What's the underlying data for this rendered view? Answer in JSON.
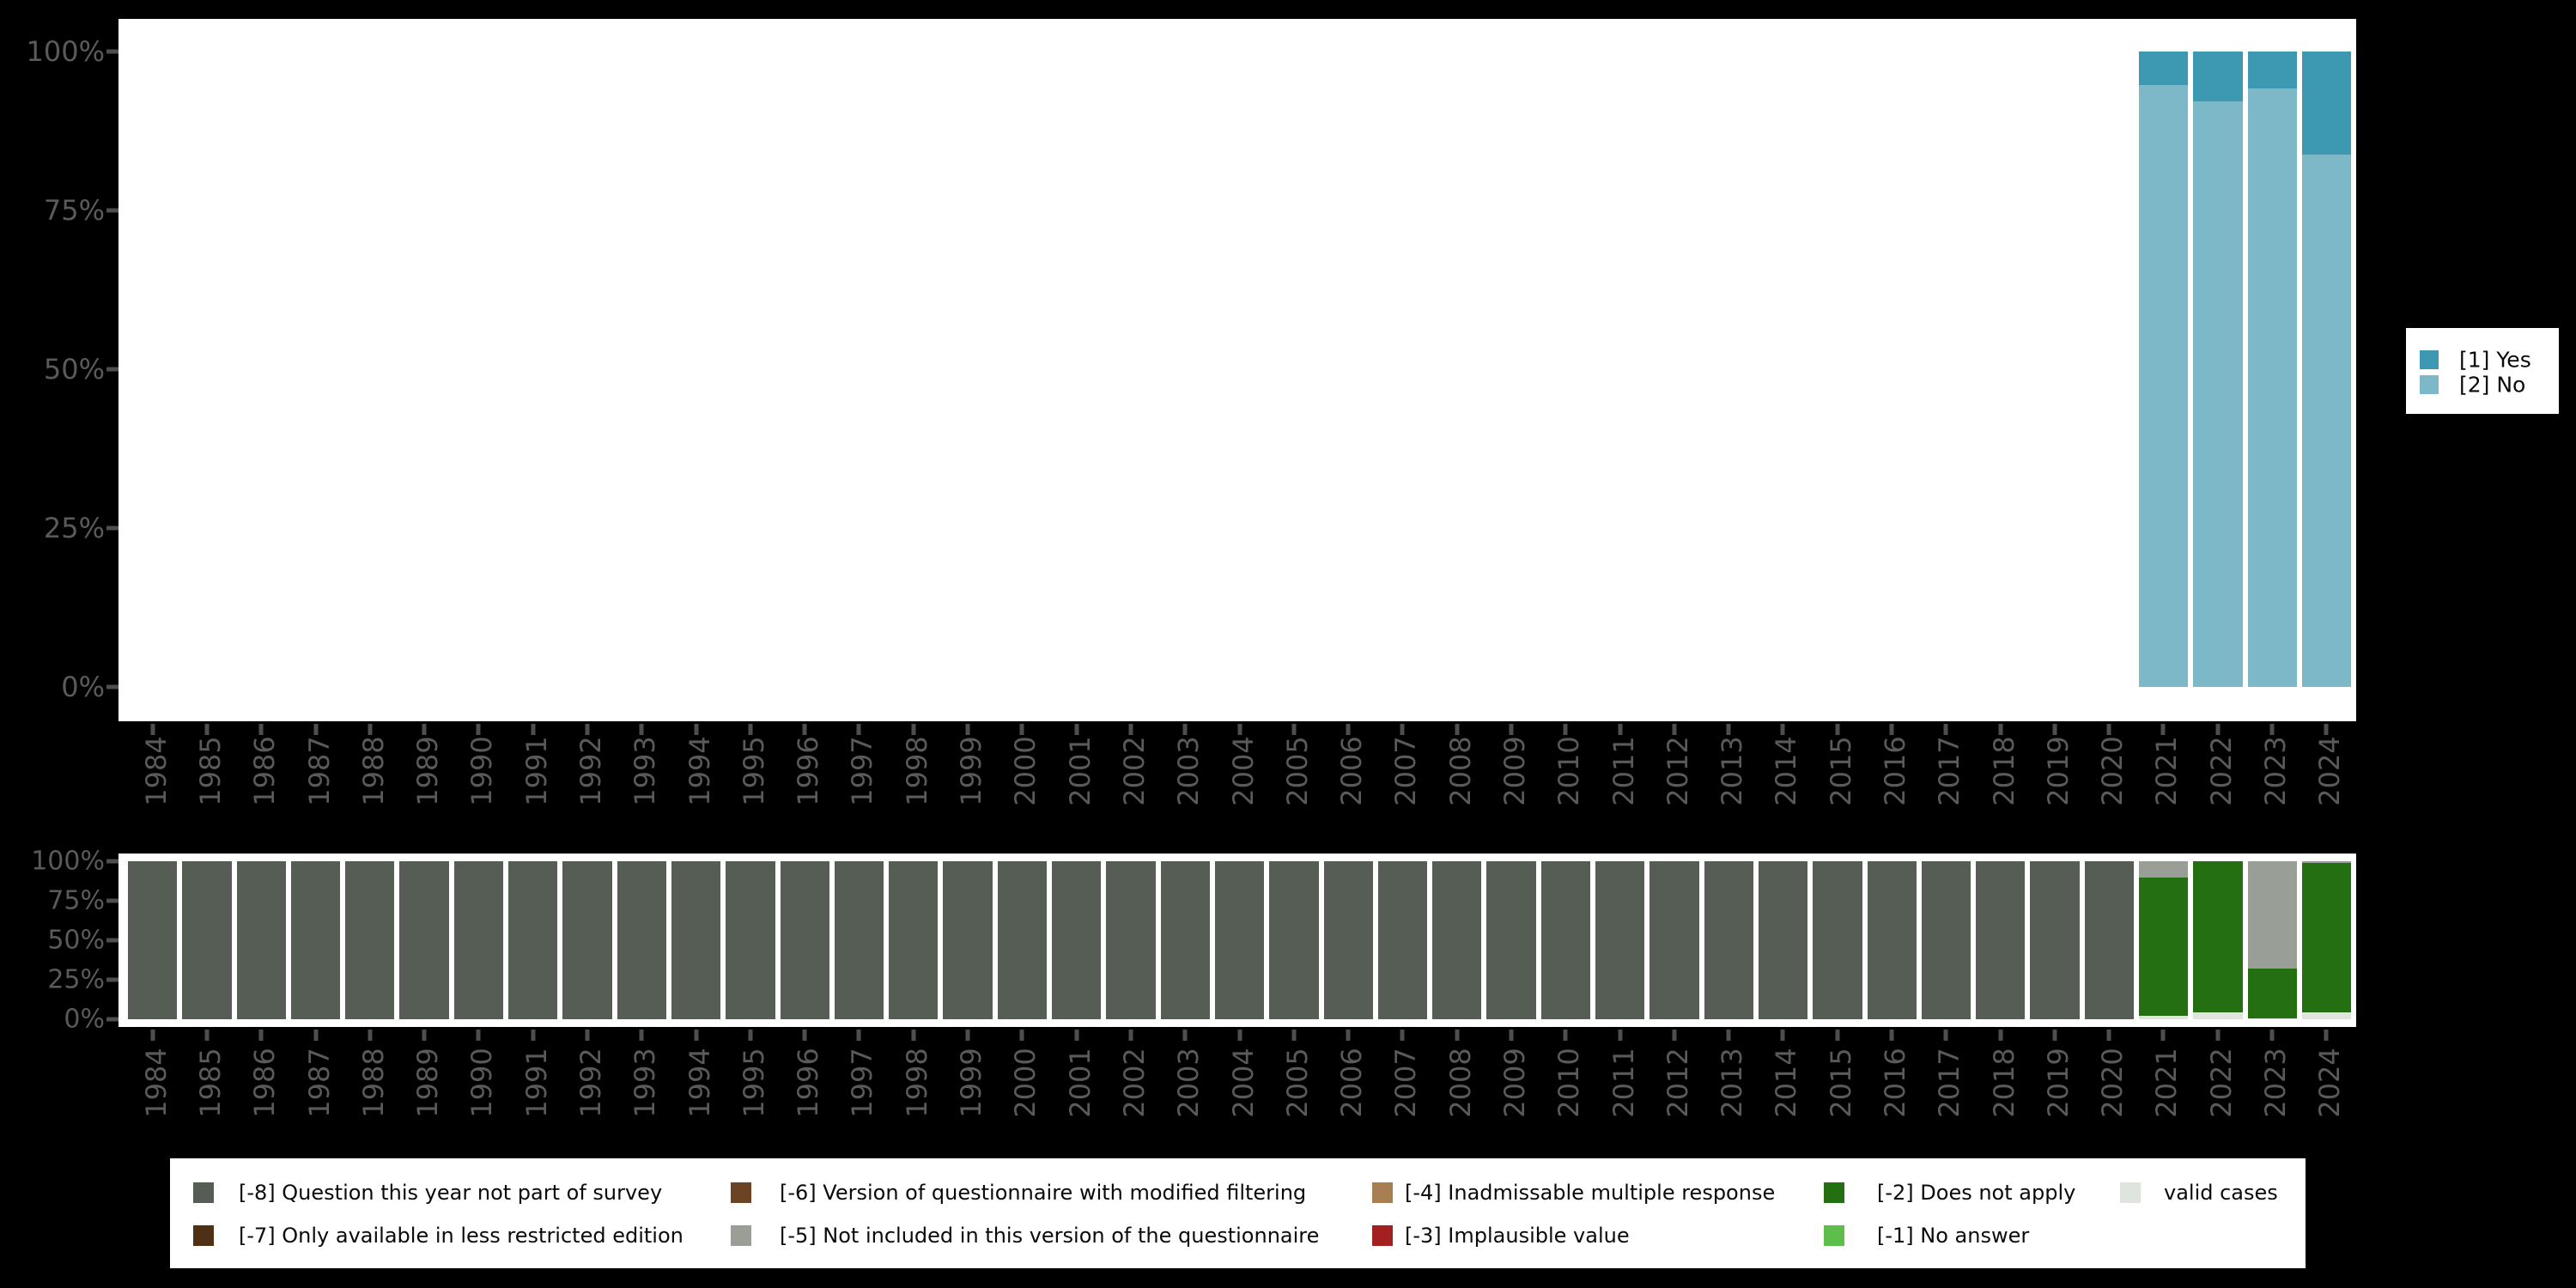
{
  "background": "#000000",
  "palette": {
    "yes": "#3d98b2",
    "no": "#7cb8c7",
    "m8": "#555d55",
    "m7": "#4e3115",
    "m6": "#6b4423",
    "m5": "#999f96",
    "m4": "#a87f52",
    "m3": "#a32020",
    "m2": "#256f13",
    "m1": "#5dbe4b",
    "valid": "#dfe4dc"
  },
  "axis": {
    "label_color": "#5a5a5a",
    "tick_color": "#4e4e4e"
  },
  "top_legend": [
    {
      "key": "yes",
      "label": "[1] Yes"
    },
    {
      "key": "no",
      "label": "[2] No"
    }
  ],
  "bottom_legend": {
    "items": [
      {
        "row": 1,
        "col": 1,
        "key": "m8",
        "label": "[-8] Question this year not part of survey"
      },
      {
        "row": 2,
        "col": 1,
        "key": "m7",
        "label": "[-7] Only available in less restricted edition"
      },
      {
        "row": 1,
        "col": 2,
        "key": "m6",
        "label": "[-6] Version of questionnaire with modified filtering"
      },
      {
        "row": 2,
        "col": 2,
        "key": "m5",
        "label": "[-5] Not included in this version of the questionnaire"
      },
      {
        "row": 1,
        "col": 3,
        "key": "m4",
        "label": "[-4] Inadmissable multiple response"
      },
      {
        "row": 2,
        "col": 3,
        "key": "m3",
        "label": "[-3] Implausible value"
      },
      {
        "row": 1,
        "col": 4,
        "key": "m2",
        "label": "[-2] Does not apply"
      },
      {
        "row": 2,
        "col": 4,
        "key": "m1",
        "label": "[-1] No answer"
      },
      {
        "row": 1,
        "col": 5,
        "key": "valid",
        "label": "valid cases"
      }
    ]
  },
  "chart_data": [
    {
      "type": "bar",
      "stacked": true,
      "title": "",
      "xlabel": "",
      "ylabel": "",
      "ylim": [
        0,
        100
      ],
      "y_ticks": [
        "100%",
        "75%",
        "50%",
        "25%",
        "0%"
      ],
      "grid": false,
      "legend_position": "right",
      "categories": [
        "1984",
        "1985",
        "1986",
        "1987",
        "1988",
        "1989",
        "1990",
        "1991",
        "1992",
        "1993",
        "1994",
        "1995",
        "1996",
        "1997",
        "1998",
        "1999",
        "2000",
        "2001",
        "2002",
        "2003",
        "2004",
        "2005",
        "2006",
        "2007",
        "2008",
        "2009",
        "2010",
        "2011",
        "2012",
        "2013",
        "2014",
        "2015",
        "2016",
        "2017",
        "2018",
        "2019",
        "2020",
        "2021",
        "2022",
        "2023",
        "2024"
      ],
      "series": [
        {
          "name": "[1] Yes",
          "key": "yes",
          "values": [
            null,
            null,
            null,
            null,
            null,
            null,
            null,
            null,
            null,
            null,
            null,
            null,
            null,
            null,
            null,
            null,
            null,
            null,
            null,
            null,
            null,
            null,
            null,
            null,
            null,
            null,
            null,
            null,
            null,
            null,
            null,
            null,
            null,
            null,
            null,
            null,
            null,
            5.3,
            7.9,
            5.8,
            16.2
          ]
        },
        {
          "name": "[2] No",
          "key": "no",
          "values": [
            null,
            null,
            null,
            null,
            null,
            null,
            null,
            null,
            null,
            null,
            null,
            null,
            null,
            null,
            null,
            null,
            null,
            null,
            null,
            null,
            null,
            null,
            null,
            null,
            null,
            null,
            null,
            null,
            null,
            null,
            null,
            null,
            null,
            null,
            null,
            null,
            null,
            94.7,
            92.1,
            94.2,
            83.8
          ]
        }
      ]
    },
    {
      "type": "bar",
      "stacked": true,
      "title": "",
      "xlabel": "",
      "ylabel": "",
      "ylim": [
        0,
        100
      ],
      "y_ticks": [
        "100%",
        "75%",
        "50%",
        "25%",
        "0%"
      ],
      "grid": false,
      "legend_position": "bottom",
      "categories": [
        "1984",
        "1985",
        "1986",
        "1987",
        "1988",
        "1989",
        "1990",
        "1991",
        "1992",
        "1993",
        "1994",
        "1995",
        "1996",
        "1997",
        "1998",
        "1999",
        "2000",
        "2001",
        "2002",
        "2003",
        "2004",
        "2005",
        "2006",
        "2007",
        "2008",
        "2009",
        "2010",
        "2011",
        "2012",
        "2013",
        "2014",
        "2015",
        "2016",
        "2017",
        "2018",
        "2019",
        "2020",
        "2021",
        "2022",
        "2023",
        "2024"
      ],
      "series": [
        {
          "name": "[-8] Question this year not part of survey",
          "key": "m8",
          "values": [
            100,
            100,
            100,
            100,
            100,
            100,
            100,
            100,
            100,
            100,
            100,
            100,
            100,
            100,
            100,
            100,
            100,
            100,
            100,
            100,
            100,
            100,
            100,
            100,
            100,
            100,
            100,
            100,
            100,
            100,
            100,
            100,
            100,
            100,
            100,
            100,
            100,
            0,
            0,
            0,
            0
          ]
        },
        {
          "name": "[-5] Not included in this version of the questionnaire",
          "key": "m5",
          "values": [
            0,
            0,
            0,
            0,
            0,
            0,
            0,
            0,
            0,
            0,
            0,
            0,
            0,
            0,
            0,
            0,
            0,
            0,
            0,
            0,
            0,
            0,
            0,
            0,
            0,
            0,
            0,
            0,
            0,
            0,
            0,
            0,
            0,
            0,
            0,
            0,
            0,
            10.5,
            0,
            68,
            1.2
          ]
        },
        {
          "name": "[-2] Does not apply",
          "key": "m2",
          "values": [
            0,
            0,
            0,
            0,
            0,
            0,
            0,
            0,
            0,
            0,
            0,
            0,
            0,
            0,
            0,
            0,
            0,
            0,
            0,
            0,
            0,
            0,
            0,
            0,
            0,
            0,
            0,
            0,
            0,
            0,
            0,
            0,
            0,
            0,
            0,
            0,
            0,
            87.4,
            95.9,
            31.3,
            94.4
          ]
        },
        {
          "name": "valid cases",
          "key": "valid",
          "values": [
            0,
            0,
            0,
            0,
            0,
            0,
            0,
            0,
            0,
            0,
            0,
            0,
            0,
            0,
            0,
            0,
            0,
            0,
            0,
            0,
            0,
            0,
            0,
            0,
            0,
            0,
            0,
            0,
            0,
            0,
            0,
            0,
            0,
            0,
            0,
            0,
            0,
            2.1,
            4.1,
            0.7,
            4.4
          ]
        }
      ]
    }
  ]
}
